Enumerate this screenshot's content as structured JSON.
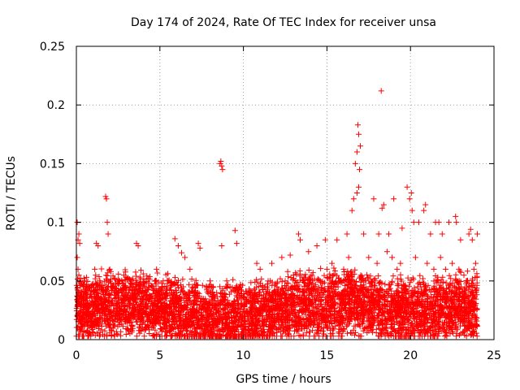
{
  "chart_data": {
    "type": "scatter",
    "title": "Day 174 of 2024, Rate Of TEC Index for receiver unsa",
    "xlabel": "GPS time / hours",
    "ylabel": "ROTI / TECUs",
    "xlim": [
      0,
      25
    ],
    "ylim": [
      0,
      0.25
    ],
    "grid": true,
    "marker": "+",
    "color": "#ff0000",
    "x_ticks": [
      0,
      5,
      10,
      15,
      20,
      25
    ],
    "x_tick_labels": [
      "0",
      "5",
      "10",
      "15",
      "20",
      "25"
    ],
    "y_ticks": [
      0,
      0.05,
      0.1,
      0.15,
      0.2,
      0.25
    ],
    "y_tick_labels": [
      "0",
      "0.05",
      "0.1",
      "0.15",
      "0.2",
      "0.25"
    ],
    "series": [
      {
        "name": "ROTI",
        "x": [
          0.05,
          0.1,
          0.15,
          0.2,
          0.05,
          0.1,
          0.15,
          1.2,
          1.3,
          1.75,
          1.8,
          1.85,
          1.9,
          2.0,
          3.6,
          3.7,
          4.8,
          5.2,
          5.5,
          5.9,
          6.1,
          6.3,
          6.5,
          6.8,
          7.3,
          7.4,
          8.6,
          8.65,
          8.7,
          8.75,
          8.7,
          9.5,
          9.6,
          10.8,
          11.0,
          11.7,
          12.3,
          12.8,
          13.3,
          13.4,
          13.9,
          14.4,
          14.9,
          15.6,
          16.2,
          16.5,
          16.6,
          16.7,
          16.8,
          16.85,
          16.9,
          16.95,
          17.0,
          16.8,
          16.9,
          17.2,
          17.8,
          18.1,
          18.25,
          18.3,
          18.4,
          18.7,
          19.0,
          19.5,
          19.8,
          19.95,
          20.05,
          20.1,
          20.2,
          20.5,
          20.8,
          20.9,
          21.2,
          21.5,
          21.7,
          21.9,
          22.3,
          22.7,
          22.75,
          23.0,
          23.5,
          23.6,
          23.7,
          23.9,
          24.0,
          0.2,
          0.3,
          0.4,
          0.5,
          0.7,
          0.9,
          1.1,
          1.4,
          1.6,
          2.2,
          2.4,
          2.6,
          2.8,
          3.0,
          3.2,
          3.4,
          3.8,
          4.0,
          4.2,
          4.4,
          4.6,
          5.0,
          5.4,
          5.8,
          6.0,
          6.4,
          6.6,
          7.0,
          7.6,
          7.8,
          8.0,
          8.2,
          8.4,
          9.0,
          9.2,
          9.8,
          10.2,
          10.5,
          11.3,
          11.6,
          12.0,
          12.5,
          13.0,
          13.6,
          14.1,
          14.6,
          15.0,
          15.3,
          15.8,
          16.0,
          16.3,
          17.5,
          18.0,
          18.6,
          18.9,
          19.2,
          19.4,
          20.3,
          21.0,
          21.4,
          21.8,
          22.1,
          22.5,
          22.9,
          23.2,
          23.4,
          23.8
        ],
        "y": [
          0.1,
          0.085,
          0.09,
          0.082,
          0.07,
          0.06,
          0.055,
          0.082,
          0.08,
          0.122,
          0.12,
          0.1,
          0.09,
          0.06,
          0.082,
          0.08,
          0.06,
          0.05,
          0.05,
          0.086,
          0.08,
          0.074,
          0.07,
          0.06,
          0.082,
          0.078,
          0.15,
          0.152,
          0.148,
          0.145,
          0.08,
          0.093,
          0.082,
          0.065,
          0.06,
          0.065,
          0.07,
          0.072,
          0.09,
          0.085,
          0.075,
          0.08,
          0.085,
          0.085,
          0.09,
          0.11,
          0.12,
          0.15,
          0.16,
          0.183,
          0.175,
          0.145,
          0.165,
          0.125,
          0.13,
          0.09,
          0.12,
          0.09,
          0.212,
          0.112,
          0.115,
          0.09,
          0.12,
          0.095,
          0.13,
          0.12,
          0.125,
          0.11,
          0.1,
          0.1,
          0.11,
          0.115,
          0.09,
          0.1,
          0.1,
          0.09,
          0.1,
          0.105,
          0.1,
          0.085,
          0.09,
          0.094,
          0.085,
          0.065,
          0.09,
          0.04,
          0.035,
          0.045,
          0.05,
          0.03,
          0.045,
          0.06,
          0.05,
          0.04,
          0.045,
          0.04,
          0.05,
          0.035,
          0.04,
          0.045,
          0.03,
          0.035,
          0.03,
          0.028,
          0.035,
          0.03,
          0.035,
          0.04,
          0.03,
          0.04,
          0.045,
          0.035,
          0.04,
          0.035,
          0.045,
          0.05,
          0.045,
          0.04,
          0.05,
          0.045,
          0.045,
          0.04,
          0.04,
          0.045,
          0.05,
          0.045,
          0.05,
          0.055,
          0.05,
          0.055,
          0.05,
          0.06,
          0.065,
          0.05,
          0.06,
          0.07,
          0.07,
          0.065,
          0.075,
          0.07,
          0.06,
          0.065,
          0.07,
          0.065,
          0.06,
          0.07,
          0.06,
          0.065,
          0.06,
          0.055,
          0.05,
          0.06
        ]
      }
    ]
  }
}
